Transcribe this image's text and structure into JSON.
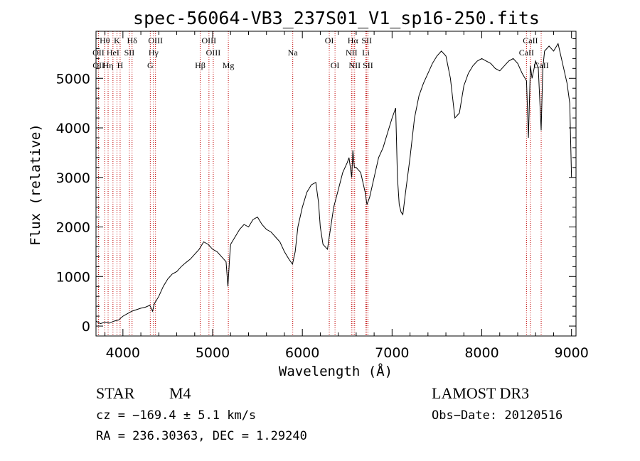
{
  "chart_data": {
    "type": "line",
    "title": "spec-56064-VB3_237S01_V1_sp16-250.fits",
    "xlabel": "Wavelength (Å)",
    "ylabel": "Flux (relative)",
    "xlim": [
      3700,
      9050
    ],
    "ylim": [
      -200,
      5950
    ],
    "xticks": [
      4000,
      5000,
      6000,
      7000,
      8000,
      9000
    ],
    "yticks": [
      0,
      1000,
      2000,
      3000,
      4000,
      5000
    ],
    "series": [
      {
        "name": "spectrum",
        "x": [
          3700,
          3750,
          3800,
          3850,
          3900,
          3950,
          4000,
          4050,
          4100,
          4150,
          4200,
          4250,
          4300,
          4330,
          4350,
          4400,
          4450,
          4500,
          4550,
          4600,
          4650,
          4700,
          4750,
          4800,
          4850,
          4900,
          4950,
          5000,
          5050,
          5100,
          5150,
          5170,
          5190,
          5200,
          5250,
          5300,
          5350,
          5400,
          5450,
          5500,
          5550,
          5600,
          5650,
          5700,
          5750,
          5800,
          5850,
          5890,
          5920,
          5950,
          6000,
          6050,
          6100,
          6150,
          6180,
          6200,
          6230,
          6280,
          6300,
          6350,
          6400,
          6450,
          6500,
          6520,
          6550,
          6563,
          6580,
          6600,
          6650,
          6700,
          6720,
          6750,
          6800,
          6850,
          6900,
          6950,
          7000,
          7040,
          7060,
          7080,
          7100,
          7120,
          7150,
          7200,
          7250,
          7300,
          7350,
          7400,
          7450,
          7500,
          7550,
          7600,
          7650,
          7700,
          7750,
          7800,
          7850,
          7900,
          7950,
          8000,
          8050,
          8100,
          8150,
          8200,
          8250,
          8300,
          8350,
          8400,
          8450,
          8498,
          8520,
          8542,
          8560,
          8600,
          8630,
          8662,
          8680,
          8700,
          8750,
          8800,
          8850,
          8900,
          8950,
          8980,
          9000
        ],
        "y": [
          100,
          50,
          80,
          60,
          100,
          120,
          200,
          250,
          300,
          330,
          360,
          380,
          420,
          300,
          450,
          600,
          800,
          950,
          1050,
          1100,
          1200,
          1280,
          1350,
          1450,
          1550,
          1700,
          1650,
          1550,
          1500,
          1400,
          1300,
          800,
          1400,
          1650,
          1800,
          1950,
          2050,
          2000,
          2150,
          2200,
          2050,
          1950,
          1900,
          1800,
          1700,
          1500,
          1350,
          1250,
          1500,
          2000,
          2400,
          2700,
          2850,
          2900,
          2500,
          2000,
          1650,
          1550,
          1800,
          2400,
          2750,
          3100,
          3300,
          3400,
          3000,
          3550,
          3200,
          3200,
          3100,
          2700,
          2450,
          2600,
          3000,
          3400,
          3600,
          3900,
          4200,
          4400,
          3000,
          2450,
          2300,
          2250,
          2700,
          3400,
          4200,
          4650,
          4900,
          5100,
          5300,
          5450,
          5550,
          5450,
          5000,
          4200,
          4300,
          4850,
          5100,
          5250,
          5350,
          5400,
          5350,
          5300,
          5200,
          5150,
          5250,
          5350,
          5400,
          5300,
          5100,
          4950,
          3800,
          5250,
          5000,
          5350,
          5200,
          3950,
          5200,
          5550,
          5650,
          5550,
          5700,
          5300,
          4900,
          4500,
          3000
        ]
      }
    ],
    "lines": [
      {
        "label": "Hθ",
        "x": 3798,
        "row": 0
      },
      {
        "label": "K",
        "x": 3934,
        "row": 0
      },
      {
        "label": "Hδ",
        "x": 4102,
        "row": 0
      },
      {
        "label": "OIII",
        "x": 4363,
        "row": 0
      },
      {
        "label": "OIII",
        "x": 4959,
        "row": 0
      },
      {
        "label": "OI",
        "x": 6300,
        "row": 0
      },
      {
        "label": "Hα",
        "x": 6563,
        "row": 0
      },
      {
        "label": "SII",
        "x": 6717,
        "row": 0
      },
      {
        "label": "CaII",
        "x": 8542,
        "row": 0
      },
      {
        "label": "OII",
        "x": 3727,
        "row": 1
      },
      {
        "label": "HeI",
        "x": 3889,
        "row": 1
      },
      {
        "label": "SII",
        "x": 4072,
        "row": 1
      },
      {
        "label": "Hγ",
        "x": 4341,
        "row": 1
      },
      {
        "label": "OIII",
        "x": 5007,
        "row": 1
      },
      {
        "label": "Na",
        "x": 5893,
        "row": 1
      },
      {
        "label": "NII",
        "x": 6548,
        "row": 1
      },
      {
        "label": "Li",
        "x": 6708,
        "row": 1
      },
      {
        "label": "CaII",
        "x": 8498,
        "row": 1
      },
      {
        "label": "OII",
        "x": 3729,
        "row": 2
      },
      {
        "label": "Hη",
        "x": 3835,
        "row": 2
      },
      {
        "label": "H",
        "x": 3969,
        "row": 2
      },
      {
        "label": "G",
        "x": 4305,
        "row": 2
      },
      {
        "label": "Hβ",
        "x": 4861,
        "row": 2
      },
      {
        "label": "Mg",
        "x": 5175,
        "row": 2
      },
      {
        "label": "OI",
        "x": 6364,
        "row": 2
      },
      {
        "label": "NII",
        "x": 6583,
        "row": 2
      },
      {
        "label": "SII",
        "x": 6731,
        "row": 2
      },
      {
        "label": "CaII",
        "x": 8662,
        "row": 2
      }
    ]
  },
  "info": {
    "class_label": "STAR",
    "subclass": "M4",
    "cz": "cz = −169.4 ± 5.1 km/s",
    "coords": "RA = 236.30363, DEC =    1.29240",
    "survey": "LAMOST DR3",
    "obs_date": "Obs−Date: 20120516"
  }
}
